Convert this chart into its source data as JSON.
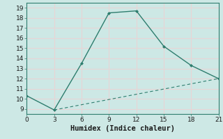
{
  "title": "",
  "xlabel": "Humidex (Indice chaleur)",
  "line1_x": [
    0,
    3,
    6,
    9,
    12,
    15,
    18,
    21
  ],
  "line1_y": [
    10.3,
    8.9,
    13.5,
    18.5,
    18.7,
    15.2,
    13.3,
    12.0
  ],
  "line2_x": [
    3,
    21
  ],
  "line2_y": [
    8.9,
    12.0
  ],
  "line_color": "#2e7d6e",
  "bg_color": "#cde8e5",
  "grid_color": "#e8d5d5",
  "axis_color": "#2e7d6e",
  "xlim": [
    0,
    21
  ],
  "ylim": [
    8.5,
    19.5
  ],
  "xticks": [
    0,
    3,
    6,
    9,
    12,
    15,
    18,
    21
  ],
  "yticks": [
    9,
    10,
    11,
    12,
    13,
    14,
    15,
    16,
    17,
    18,
    19
  ],
  "xlabel_fontsize": 7.5,
  "tick_fontsize": 6.5
}
